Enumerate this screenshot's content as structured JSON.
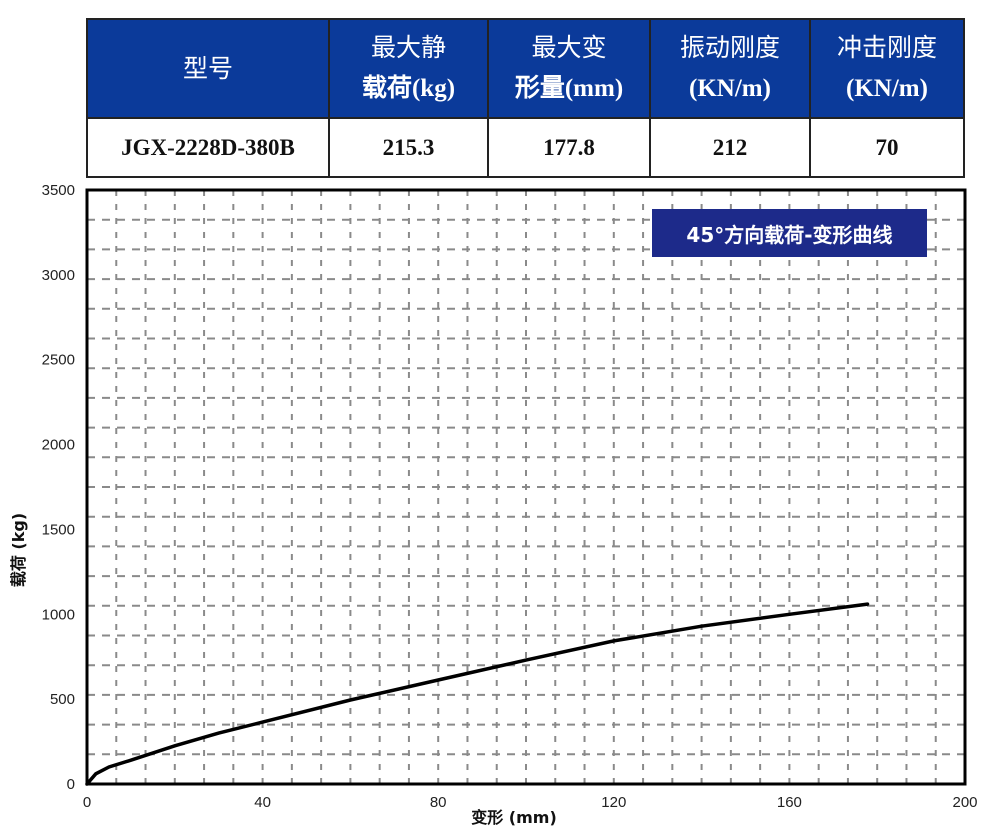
{
  "table": {
    "headers": [
      {
        "line1": "型号",
        "line2": ""
      },
      {
        "line1": "最大静",
        "line2": "载荷(kg)"
      },
      {
        "line1": "最大变",
        "line2": "形量(mm)"
      },
      {
        "line1": "振动刚度",
        "line2": "(KN/m)"
      },
      {
        "line1": "冲击刚度",
        "line2": "(KN/m)"
      }
    ],
    "row": [
      "JGX-2228D-380B",
      "215.3",
      "177.8",
      "212",
      "70"
    ]
  },
  "chart_data": {
    "type": "line",
    "title": "45°方向载荷-变形曲线",
    "xlabel": "变形 (mm)",
    "ylabel": "载荷 (kg)",
    "xlim": [
      0,
      200
    ],
    "ylim": [
      0,
      3500
    ],
    "xticks": [
      0,
      40,
      80,
      120,
      160,
      200
    ],
    "yticks": [
      0,
      500,
      1000,
      1500,
      2000,
      2500,
      3000,
      3500
    ],
    "grid": true,
    "legend_position": "top-right",
    "series": [
      {
        "name": "45°方向载荷-变形曲线",
        "x": [
          0,
          2,
          5,
          10,
          20,
          30,
          40,
          60,
          80,
          100,
          120,
          140,
          160,
          177.8
        ],
        "y": [
          0,
          60,
          100,
          140,
          225,
          300,
          365,
          495,
          613,
          730,
          843,
          930,
          1000,
          1060
        ]
      }
    ]
  },
  "colors": {
    "header_bg": "#0b3a9a",
    "legend_bg": "#1d2a8a",
    "grid": "#8a8a8a",
    "curve": "#000000"
  }
}
